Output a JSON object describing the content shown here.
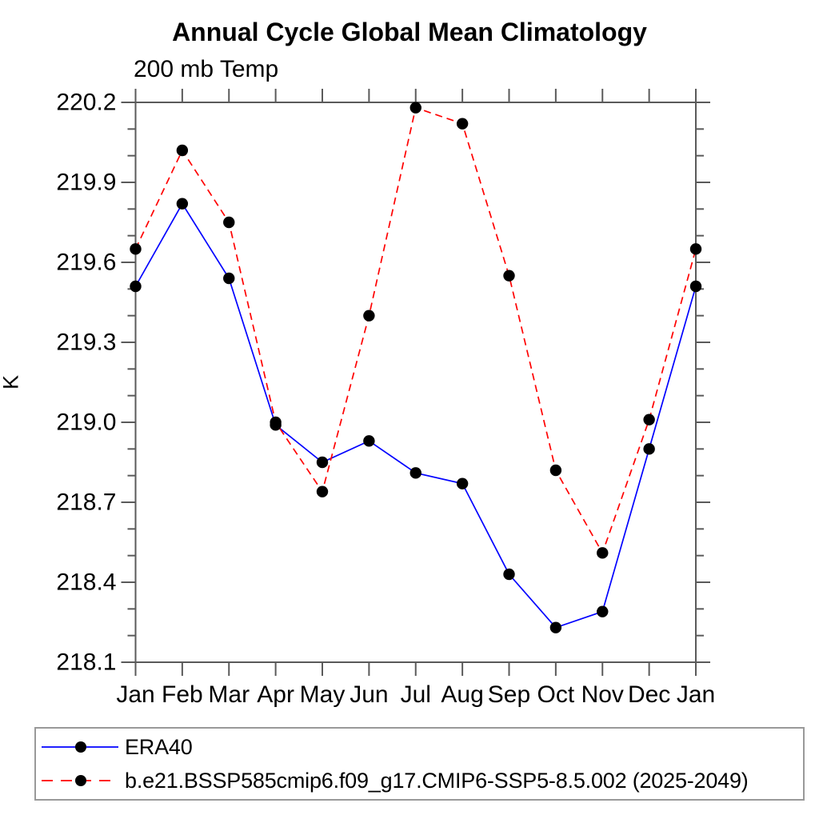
{
  "page": {
    "background": "#ffffff",
    "axis_color": "#5a5a5a",
    "text_color": "#000000"
  },
  "chart": {
    "title": "Annual Cycle Global Mean Climatology",
    "subtitle": "200 mb Temp",
    "ylabel": "K"
  },
  "chart_data": {
    "type": "line",
    "title": "Annual Cycle Global Mean Climatology",
    "subtitle": "200 mb Temp",
    "xlabel": "",
    "ylabel": "K",
    "ylim": [
      218.1,
      220.2
    ],
    "ytick_major_interval": 0.3,
    "ytick_minor_interval": 0.1,
    "yticks_labeled": [
      218.1,
      218.4,
      218.7,
      219.0,
      219.3,
      219.6,
      219.9,
      220.2
    ],
    "categories": [
      "Jan",
      "Feb",
      "Mar",
      "Apr",
      "May",
      "Jun",
      "Jul",
      "Aug",
      "Sep",
      "Oct",
      "Nov",
      "Dec",
      "Jan"
    ],
    "grid": false,
    "legend_position": "bottom-outside-box",
    "marker": {
      "shape": "circle",
      "color": "#000000",
      "radius_px": 7.2
    },
    "series": [
      {
        "name": "ERA40",
        "color": "#0000ff",
        "line_style": "solid",
        "values": [
          219.51,
          219.82,
          219.54,
          218.99,
          218.85,
          218.93,
          218.81,
          218.77,
          218.43,
          218.23,
          218.29,
          218.9,
          219.51
        ]
      },
      {
        "name": "b.e21.BSSP585cmip6.f09_g17.CMIP6-SSP5-8.5.002 (2025-2049)",
        "color": "#ff0000",
        "line_style": "dashed",
        "values": [
          219.65,
          220.02,
          219.75,
          219.0,
          218.74,
          219.4,
          220.18,
          220.12,
          219.55,
          218.82,
          218.51,
          219.01,
          219.65
        ]
      }
    ]
  }
}
